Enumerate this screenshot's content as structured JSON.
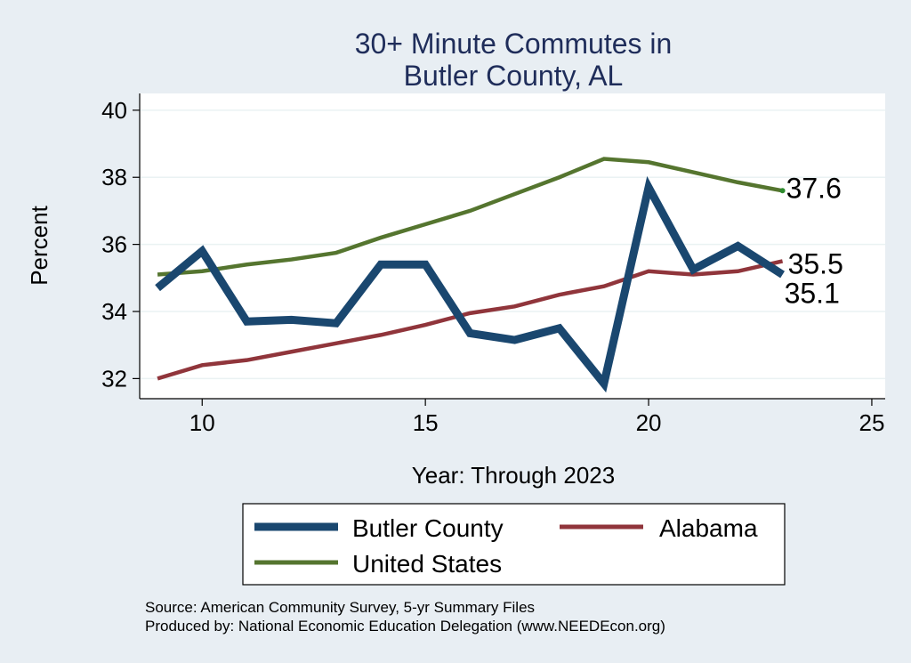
{
  "chart_data": {
    "type": "line",
    "title": [
      "30+ Minute Commutes in",
      "Butler County, AL"
    ],
    "xlabel": "Year: Through 2023",
    "ylabel": "Percent",
    "xlim": [
      8.6,
      25.3
    ],
    "ylim": [
      31.4,
      40.5
    ],
    "xticks": [
      10,
      15,
      20,
      25
    ],
    "yticks": [
      32,
      34,
      36,
      38,
      40
    ],
    "x": [
      9,
      10,
      11,
      12,
      13,
      14,
      15,
      16,
      17,
      18,
      19,
      20,
      21,
      22,
      23
    ],
    "series": [
      {
        "name": "Butler County",
        "color": "#1a476f",
        "values": [
          34.7,
          35.8,
          33.7,
          33.75,
          33.65,
          35.4,
          35.4,
          33.35,
          33.15,
          33.5,
          31.85,
          37.7,
          35.25,
          35.95,
          35.1
        ],
        "end_label": "35.1"
      },
      {
        "name": "Alabama",
        "color": "#90353b",
        "values": [
          32.0,
          32.4,
          32.55,
          32.8,
          33.05,
          33.3,
          33.6,
          33.95,
          34.15,
          34.5,
          34.75,
          35.2,
          35.1,
          35.2,
          35.5
        ],
        "end_label": "35.5"
      },
      {
        "name": "United States",
        "color": "#55752f",
        "values": [
          35.1,
          35.2,
          35.4,
          35.55,
          35.75,
          36.2,
          36.6,
          37.0,
          37.5,
          38.0,
          38.55,
          38.45,
          38.15,
          37.85,
          37.6
        ],
        "end_label": "37.6"
      }
    ],
    "legend": [
      "Butler County",
      "Alabama",
      "United States"
    ],
    "notes": [
      "Source: American Community Survey, 5-yr Summary Files",
      "Produced by: National Economic Education Delegation (www.NEEDEcon.org)"
    ]
  }
}
